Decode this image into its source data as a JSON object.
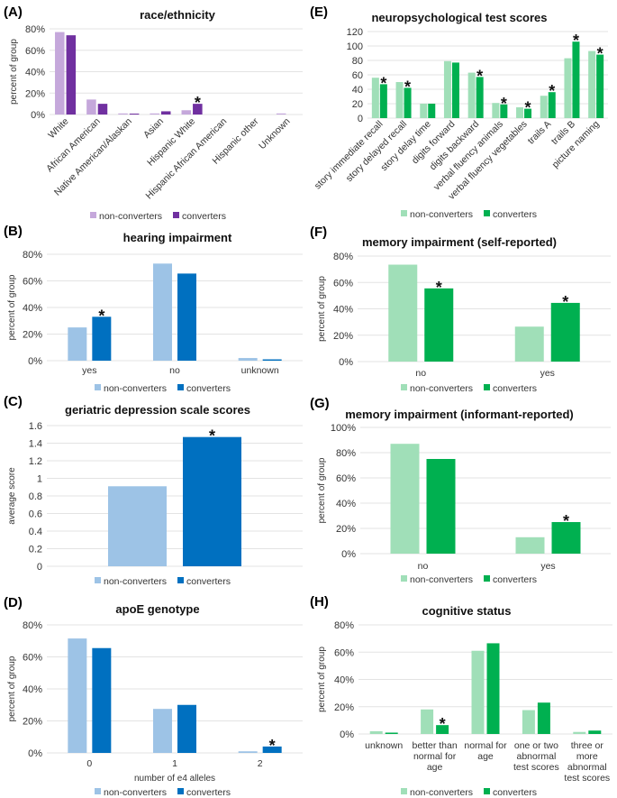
{
  "legend": {
    "non_converters": "non-converters",
    "converters": "converters"
  },
  "colors": {
    "purple_light": "#c5a8db",
    "purple_dark": "#7030a0",
    "blue_light": "#9dc3e6",
    "blue_dark": "#0070c0",
    "green_light": "#a0dfb8",
    "green_dark": "#00b050"
  },
  "chart_data": [
    {
      "id": "A",
      "panel_label": "(A)",
      "type": "bar",
      "title": "race/ethnicity",
      "ylabel": "percent of group",
      "xlabel": "",
      "ylim": [
        0,
        80
      ],
      "yticks": [
        "0%",
        "20%",
        "40%",
        "60%",
        "80%"
      ],
      "categories": [
        "White",
        "African American",
        "Native American/Alaskan",
        "Asian",
        "Hispanic White",
        "Hispanic African American",
        "Hispanic other",
        "Unknown"
      ],
      "series": [
        {
          "name": "non-converters",
          "values": [
            77,
            14,
            1,
            1,
            4,
            0,
            0,
            1
          ]
        },
        {
          "name": "converters",
          "values": [
            74,
            10,
            0.5,
            3,
            10,
            0,
            0,
            0
          ]
        }
      ],
      "significant": [
        4
      ],
      "legend_position": "bottom",
      "grid": true
    },
    {
      "id": "B",
      "panel_label": "(B)",
      "type": "bar",
      "title": "hearing impairment",
      "ylabel": "percent of group",
      "xlabel": "",
      "ylim": [
        0,
        80
      ],
      "yticks": [
        "0%",
        "20%",
        "40%",
        "60%",
        "80%"
      ],
      "categories": [
        "yes",
        "no",
        "unknown"
      ],
      "series": [
        {
          "name": "non-converters",
          "values": [
            25,
            73,
            2
          ]
        },
        {
          "name": "converters",
          "values": [
            33,
            65.5,
            1
          ]
        }
      ],
      "significant": [
        0
      ],
      "legend_position": "bottom",
      "grid": true
    },
    {
      "id": "C",
      "panel_label": "(C)",
      "type": "bar",
      "title": "geriatric depression scale scores",
      "ylabel": "average score",
      "xlabel": "",
      "ylim": [
        0,
        1.6
      ],
      "yticks": [
        "0",
        "0.2",
        "0.4",
        "0.6",
        "0.8",
        "1",
        "1.2",
        "1.4",
        "1.6"
      ],
      "categories": [
        ""
      ],
      "series": [
        {
          "name": "non-converters",
          "values": [
            0.91
          ]
        },
        {
          "name": "converters",
          "values": [
            1.47
          ]
        }
      ],
      "significant": [
        0
      ],
      "legend_position": "bottom",
      "grid": true
    },
    {
      "id": "D",
      "panel_label": "(D)",
      "type": "bar",
      "title": "apoE genotype",
      "ylabel": "percent of group",
      "xlabel": "number of e4 alleles",
      "ylim": [
        0,
        80
      ],
      "yticks": [
        "0%",
        "20%",
        "40%",
        "60%",
        "80%"
      ],
      "categories": [
        "0",
        "1",
        "2"
      ],
      "series": [
        {
          "name": "non-converters",
          "values": [
            71.5,
            27.5,
            1
          ]
        },
        {
          "name": "converters",
          "values": [
            65.5,
            30,
            4
          ]
        }
      ],
      "significant": [
        2
      ],
      "legend_position": "bottom",
      "grid": true
    },
    {
      "id": "E",
      "panel_label": "(E)",
      "type": "bar",
      "title": "neuropsychological test scores",
      "ylabel": "",
      "xlabel": "",
      "ylim": [
        0,
        120
      ],
      "yticks": [
        "0",
        "20",
        "40",
        "60",
        "80",
        "100",
        "120"
      ],
      "categories": [
        "story immediate recall",
        "story delayed recall",
        "story delay time",
        "digits forward",
        "digits backward",
        "verbal fluency animals",
        "verbal fluency vegetables",
        "trails A",
        "trails B",
        "picture naming"
      ],
      "series": [
        {
          "name": "non-converters",
          "values": [
            56,
            50,
            20,
            79,
            63,
            21,
            15,
            31,
            83,
            93
          ]
        },
        {
          "name": "converters",
          "values": [
            47,
            42,
            20,
            77,
            57,
            19,
            13,
            36,
            106,
            88
          ]
        }
      ],
      "significant": [
        0,
        1,
        4,
        5,
        6,
        7,
        8,
        9
      ],
      "legend_position": "bottom",
      "grid": true
    },
    {
      "id": "F",
      "panel_label": "(F)",
      "type": "bar",
      "title": "memory impairment (self-reported)",
      "ylabel": "percent of group",
      "xlabel": "",
      "ylim": [
        0,
        80
      ],
      "yticks": [
        "0%",
        "20%",
        "40%",
        "60%",
        "80%"
      ],
      "categories": [
        "no",
        "yes"
      ],
      "series": [
        {
          "name": "non-converters",
          "values": [
            73.5,
            26.5
          ]
        },
        {
          "name": "converters",
          "values": [
            55.5,
            44.5
          ]
        }
      ],
      "significant": [
        0,
        1
      ],
      "legend_position": "bottom",
      "grid": true
    },
    {
      "id": "G",
      "panel_label": "(G)",
      "type": "bar",
      "title": "memory impairment (informant-reported)",
      "ylabel": "percent of group",
      "xlabel": "",
      "ylim": [
        0,
        100
      ],
      "yticks": [
        "0%",
        "20%",
        "40%",
        "60%",
        "80%",
        "100%"
      ],
      "categories": [
        "no",
        "yes"
      ],
      "series": [
        {
          "name": "non-converters",
          "values": [
            87,
            13
          ]
        },
        {
          "name": "converters",
          "values": [
            75,
            25
          ]
        }
      ],
      "significant": [
        1
      ],
      "legend_position": "bottom",
      "grid": true
    },
    {
      "id": "H",
      "panel_label": "(H)",
      "type": "bar",
      "title": "cognitive status",
      "ylabel": "percent of group",
      "xlabel": "",
      "ylim": [
        0,
        80
      ],
      "yticks": [
        "0%",
        "20%",
        "40%",
        "60%",
        "80%"
      ],
      "categories": [
        "unknown",
        "better than normal for age",
        "normal for age",
        "one or two abnormal test scores",
        "three or more abnormal test scores"
      ],
      "category_lines": [
        [
          "unknown"
        ],
        [
          "better than",
          "normal for",
          "age"
        ],
        [
          "normal for",
          "age"
        ],
        [
          "one or two",
          "abnormal",
          "test scores"
        ],
        [
          "three or",
          "more",
          "abnormal",
          "test scores"
        ]
      ],
      "series": [
        {
          "name": "non-converters",
          "values": [
            2,
            18,
            61,
            17.5,
            1.5
          ]
        },
        {
          "name": "converters",
          "values": [
            1,
            6.5,
            66.5,
            23,
            2.5
          ]
        }
      ],
      "significant": [
        1
      ],
      "legend_position": "bottom",
      "grid": true
    }
  ]
}
